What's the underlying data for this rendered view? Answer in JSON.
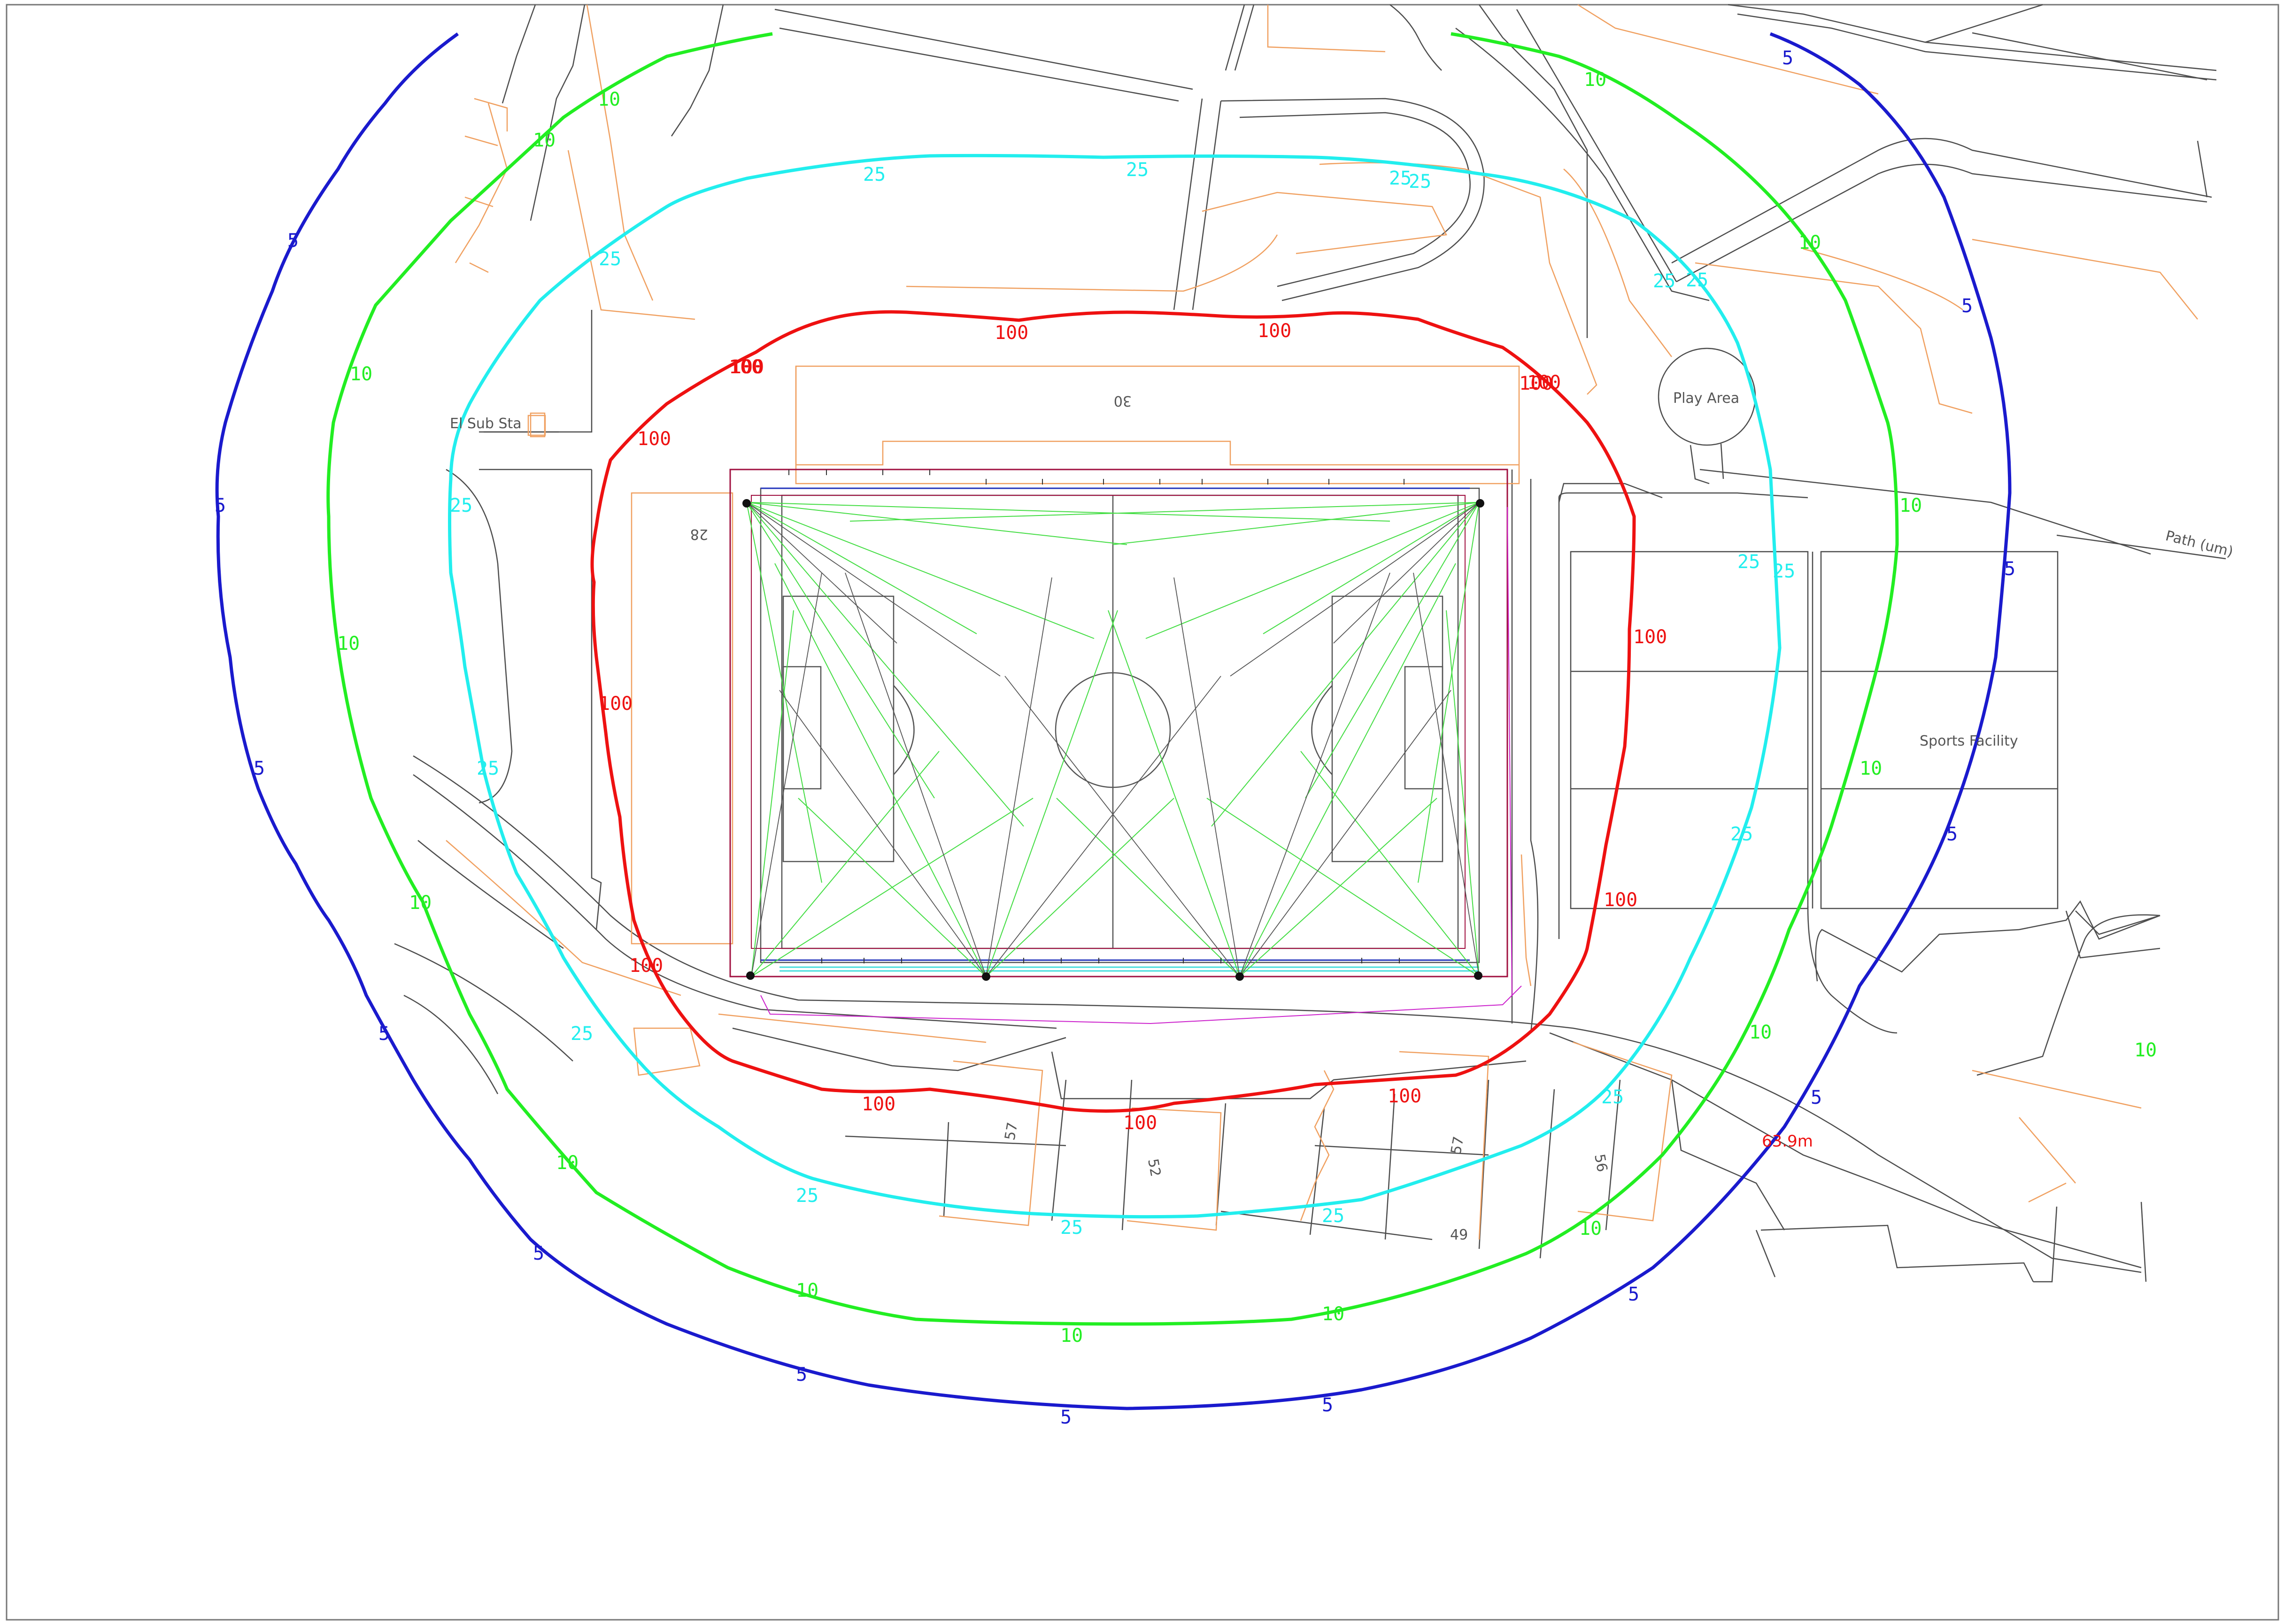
{
  "drawing": {
    "labels": {
      "sub_station": "El Sub Sta",
      "play_area": "Play Area",
      "path": "Path (um)",
      "sports_facility": "Sports Facility",
      "plot_30": "30",
      "plot_28": "28",
      "plot_57a": "57",
      "plot_52": "52",
      "plot_57b": "57",
      "plot_56": "56",
      "plot_49": "49",
      "distance": "63.9m"
    }
  },
  "contours": {
    "c5": {
      "value": "5",
      "color": "#1a1acd",
      "labels": [
        "5",
        "5",
        "5",
        "5",
        "5",
        "5",
        "5",
        "5",
        "5",
        "5",
        "5",
        "5",
        "5",
        "5"
      ]
    },
    "c10": {
      "value": "10",
      "color": "#22ee22",
      "labels": [
        "10",
        "10",
        "10",
        "10",
        "10",
        "10",
        "10",
        "10",
        "10",
        "10",
        "10",
        "10",
        "10",
        "10",
        "10",
        "10"
      ]
    },
    "c25": {
      "value": "25",
      "color": "#22eeee",
      "labels": [
        "25",
        "25",
        "25",
        "25",
        "25",
        "25",
        "25",
        "25",
        "25",
        "25",
        "25",
        "25",
        "25",
        "25",
        "25",
        "25",
        "25"
      ]
    },
    "c100": {
      "value": "100",
      "color": "#ee1111",
      "labels": [
        "100",
        "100",
        "100",
        "100",
        "100",
        "100",
        "100",
        "100",
        "100",
        "100",
        "100",
        "100",
        "100",
        "100"
      ]
    }
  },
  "colors": {
    "basemap_line": "#4d4d4d",
    "property_line": "#f0a060",
    "pitch_line": "#555555",
    "light_beam": "#44dd44",
    "fence_line": "#a01040",
    "annotation_magenta": "#cc22cc",
    "distance_text": "#ee1111"
  }
}
